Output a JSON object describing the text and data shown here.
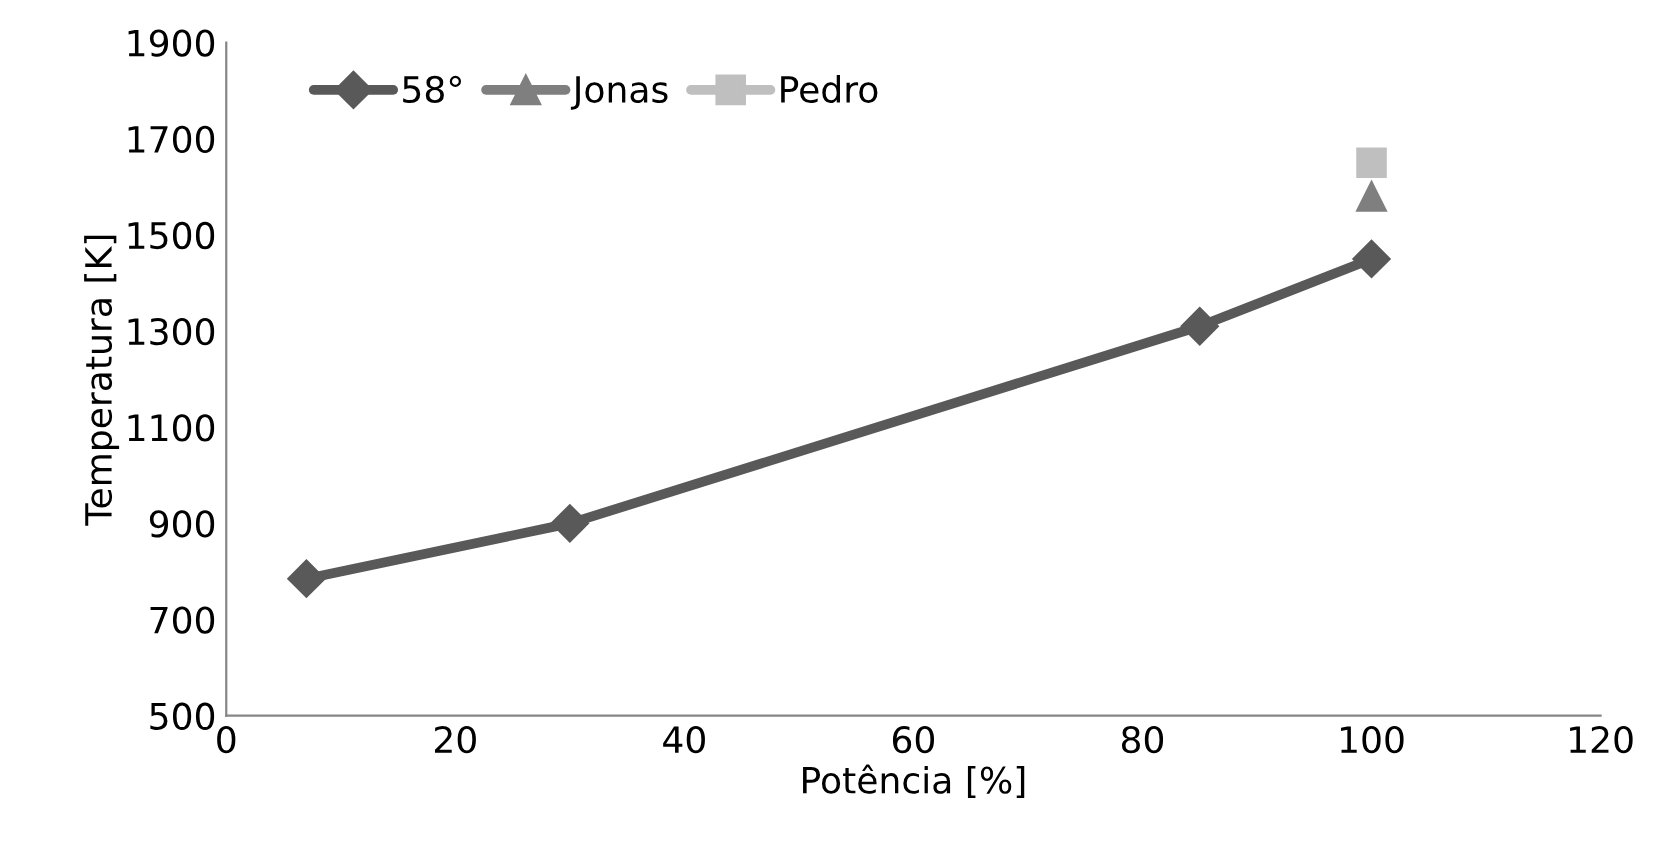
{
  "chart_data": {
    "type": "line",
    "xlabel": "Potência [%]",
    "ylabel": "Temperatura [K]",
    "xlim": [
      0,
      120
    ],
    "xticks": [
      0,
      20,
      40,
      60,
      80,
      100,
      120
    ],
    "ylim": [
      500,
      1900
    ],
    "yticks": [
      500,
      700,
      900,
      1100,
      1300,
      1500,
      1700,
      1900
    ],
    "grid": false,
    "legend": "top left",
    "line_style": "solid",
    "series": [
      {
        "name": "58°",
        "color": "#595959",
        "marker": "diamond",
        "x": [
          7,
          30,
          85,
          100
        ],
        "values": [
          785,
          900,
          1310,
          1450
        ]
      },
      {
        "name": "Jonas",
        "color": "#7f7f7f",
        "marker": "triangle",
        "x": [
          100
        ],
        "values": [
          1580
        ]
      },
      {
        "name": "Pedro",
        "color": "#bfbfbf",
        "marker": "square",
        "x": [
          100
        ],
        "values": [
          1650
        ]
      }
    ]
  }
}
